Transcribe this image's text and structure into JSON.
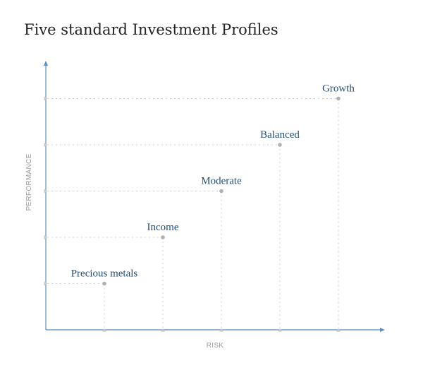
{
  "chart_data": {
    "type": "scatter",
    "title": "Five standard Investment Profiles",
    "xlabel": "RISK",
    "ylabel": "PERFORMANCE",
    "xlim": [
      0,
      5
    ],
    "ylim": [
      0,
      5
    ],
    "grid": "dotted guide lines from each point to the axes",
    "points": [
      {
        "label": "Precious metals",
        "x": 1,
        "y": 1
      },
      {
        "label": "Income",
        "x": 2,
        "y": 2
      },
      {
        "label": "Moderate",
        "x": 3,
        "y": 3
      },
      {
        "label": "Balanced",
        "x": 4,
        "y": 4
      },
      {
        "label": "Growth",
        "x": 5,
        "y": 5
      }
    ],
    "colors": {
      "axis": "#5b8fc7",
      "point": "#b0b0b0",
      "guide": "#d0d0d0",
      "label": "#1f4e79"
    }
  }
}
